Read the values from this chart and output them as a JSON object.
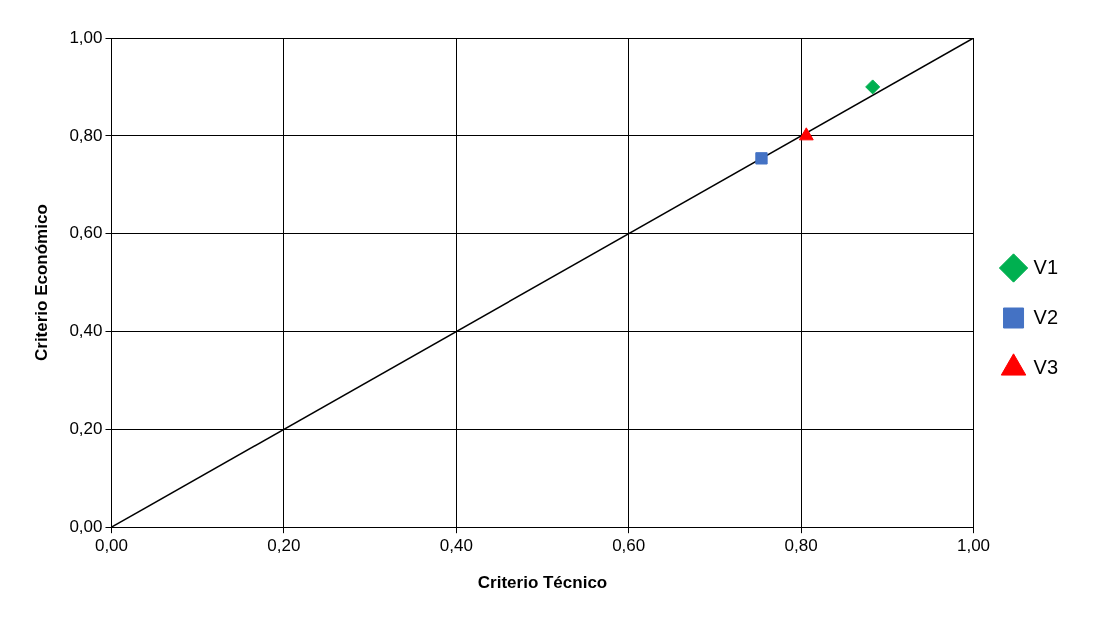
{
  "chart_data": {
    "type": "scatter",
    "xlabel": "Criterio Técnico",
    "ylabel": "Criterio Económico",
    "xlim": [
      0,
      1
    ],
    "ylim": [
      0,
      1
    ],
    "xticks": [
      {
        "value": 0,
        "label": "0,00"
      },
      {
        "value": 0.2,
        "label": "0,20"
      },
      {
        "value": 0.4,
        "label": "0,40"
      },
      {
        "value": 0.6,
        "label": "0,60"
      },
      {
        "value": 0.8,
        "label": "0,80"
      },
      {
        "value": 1,
        "label": "1,00"
      }
    ],
    "yticks": [
      {
        "value": 0,
        "label": "0,00"
      },
      {
        "value": 0.2,
        "label": "0,20"
      },
      {
        "value": 0.4,
        "label": "0,40"
      },
      {
        "value": 0.6,
        "label": "0,60"
      },
      {
        "value": 0.8,
        "label": "0,80"
      },
      {
        "value": 1,
        "label": "1,00"
      }
    ],
    "grid": true,
    "legend": "right",
    "series": [
      {
        "name": "V1",
        "color": "#00b050",
        "marker": "diamond",
        "x": [
          0.883
        ],
        "values": [
          0.9
        ]
      },
      {
        "name": "V2",
        "color": "#4472c4",
        "marker": "square",
        "x": [
          0.754
        ],
        "values": [
          0.754
        ]
      },
      {
        "name": "V3",
        "color": "#ff0000",
        "marker": "triangle",
        "x": [
          0.806
        ],
        "values": [
          0.8
        ]
      },
      {
        "type": "line",
        "color": "#000000",
        "marker": "none",
        "line_style": "solid",
        "x": [
          0,
          1
        ],
        "values": [
          0,
          1
        ]
      }
    ]
  }
}
